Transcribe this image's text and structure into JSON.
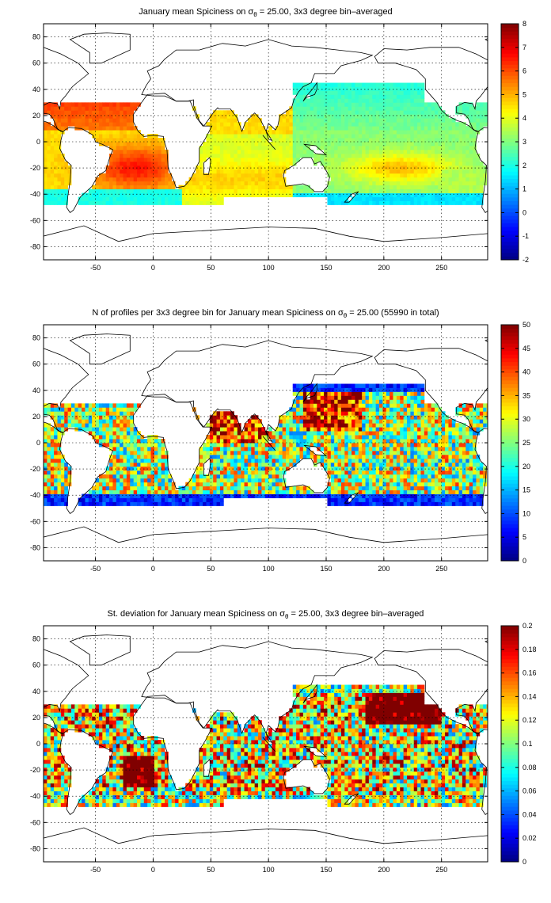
{
  "chart_data": [
    {
      "type": "heatmap",
      "title_parts": [
        "January mean Spiciness on ",
        "σ",
        "θ",
        " = 25.00, 3x3 degree bin–averaged"
      ],
      "xlim": [
        -95,
        290
      ],
      "ylim": [
        -90,
        90
      ],
      "xticks": [
        -50,
        0,
        50,
        100,
        150,
        200,
        250
      ],
      "yticks": [
        -80,
        -60,
        -40,
        -20,
        0,
        20,
        40,
        60,
        80
      ],
      "grid": true,
      "colorbar": {
        "min": -2,
        "max": 8,
        "ticks": [
          -2,
          -1,
          0,
          1,
          2,
          3,
          4,
          5,
          6,
          7,
          8
        ]
      },
      "field": "spiciness",
      "bin_deg": 3
    },
    {
      "type": "heatmap",
      "title_parts": [
        "N of profiles per 3x3 degree bin for January mean Spiciness on ",
        "σ",
        "θ",
        " = 25.00 (55990 in total)"
      ],
      "xlim": [
        -95,
        290
      ],
      "ylim": [
        -90,
        90
      ],
      "xticks": [
        -50,
        0,
        50,
        100,
        150,
        200,
        250
      ],
      "yticks": [
        -80,
        -60,
        -40,
        -20,
        0,
        20,
        40,
        60,
        80
      ],
      "grid": true,
      "colorbar": {
        "min": 0,
        "max": 50,
        "ticks": [
          0,
          5,
          10,
          15,
          20,
          25,
          30,
          35,
          40,
          45,
          50
        ]
      },
      "field": "count",
      "bin_deg": 3
    },
    {
      "type": "heatmap",
      "title_parts": [
        "St. deviation for January mean Spiciness on ",
        "σ",
        "θ",
        " = 25.00, 3x3 degree bin–averaged"
      ],
      "xlim": [
        -95,
        290
      ],
      "ylim": [
        -90,
        90
      ],
      "xticks": [
        -50,
        0,
        50,
        100,
        150,
        200,
        250
      ],
      "yticks": [
        -80,
        -60,
        -40,
        -20,
        0,
        20,
        40,
        60,
        80
      ],
      "grid": true,
      "colorbar": {
        "min": 0,
        "max": 0.2,
        "ticks": [
          0,
          0.02,
          0.04,
          0.06,
          0.08,
          0.1,
          0.12,
          0.14,
          0.16,
          0.18,
          0.2
        ]
      },
      "field": "stdev",
      "bin_deg": 3
    }
  ]
}
